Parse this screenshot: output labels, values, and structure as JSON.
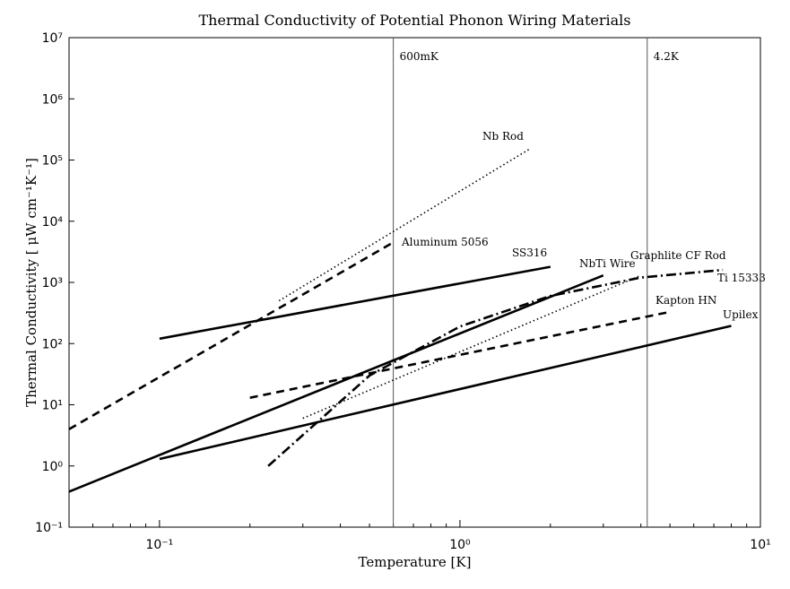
{
  "chart_data": {
    "type": "line",
    "title": "Thermal Conductivity of Potential Phonon Wiring Materials",
    "xlabel": "Temperature [K]",
    "ylabel": "Thermal Conductivity [ μW cm⁻¹K⁻¹]",
    "x_scale": "log",
    "y_scale": "log",
    "xlim": [
      0.05,
      10
    ],
    "ylim": [
      0.1,
      10000000
    ],
    "x_tick_labels": [
      "10⁻¹",
      "10⁰",
      "10¹"
    ],
    "y_tick_labels": [
      "10⁻¹",
      "10⁰",
      "10¹",
      "10²",
      "10³",
      "10⁴",
      "10⁵",
      "10⁶",
      "10⁷"
    ],
    "grid": false,
    "reference_lines": [
      {
        "label": "600mK",
        "x": 0.6
      },
      {
        "label": "4.2K",
        "x": 4.2
      }
    ],
    "series": [
      {
        "name": "Nb Rod",
        "style": "dotted",
        "x": [
          0.25,
          1.7
        ],
        "y": [
          500,
          150000
        ]
      },
      {
        "name": "Aluminum 5056",
        "style": "dashed",
        "x": [
          0.05,
          0.6
        ],
        "y": [
          4,
          4500
        ]
      },
      {
        "name": "SS316",
        "style": "solid",
        "x": [
          0.1,
          2.0
        ],
        "y": [
          120,
          1800
        ]
      },
      {
        "name": "NbTi Wire",
        "style": "solid",
        "x": [
          0.05,
          3.0
        ],
        "y": [
          0.38,
          1300
        ]
      },
      {
        "name": "Graphlite CF Rod",
        "style": "dotted",
        "x": [
          0.3,
          4.0
        ],
        "y": [
          6,
          1300
        ]
      },
      {
        "name": "Ti 15333",
        "style": "dashdot",
        "x": [
          0.23,
          0.5,
          1.0,
          2.0,
          4.0,
          7.5
        ],
        "y": [
          1,
          30,
          190,
          600,
          1200,
          1600
        ]
      },
      {
        "name": "Kapton HN",
        "style": "dashed",
        "x": [
          0.2,
          5.0
        ],
        "y": [
          13,
          330
        ]
      },
      {
        "name": "Upilex",
        "style": "solid",
        "x": [
          0.1,
          8.0
        ],
        "y": [
          1.3,
          195
        ]
      }
    ]
  }
}
